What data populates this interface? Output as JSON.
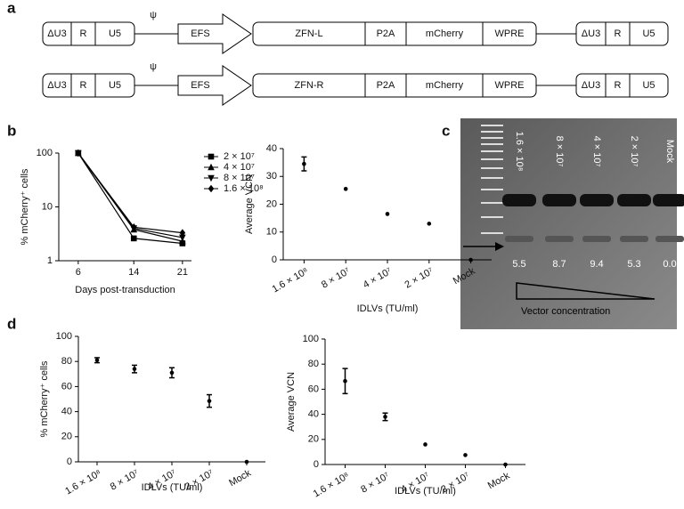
{
  "panels": [
    "a",
    "b",
    "c",
    "d"
  ],
  "diagram": {
    "rows": [
      [
        "ΔU3",
        "R",
        "U5",
        "ψ",
        "EFS",
        "ZFN-L",
        "P2A",
        "mCherry",
        "WPRE",
        "ΔU3",
        "R",
        "U5"
      ],
      [
        "ΔU3",
        "R",
        "U5",
        "ψ",
        "EFS",
        "ZFN-R",
        "P2A",
        "mCherry",
        "WPRE",
        "ΔU3",
        "R",
        "U5"
      ]
    ]
  },
  "gel": {
    "lanes": [
      "1.6 × 10⁸",
      "8 × 10⁷",
      "4 × 10⁷",
      "2 × 10⁷",
      "Mock"
    ],
    "values": [
      "5.5",
      "8.7",
      "9.4",
      "5.3",
      "0.0"
    ],
    "caption": "Vector concentration"
  },
  "chart_data": [
    {
      "type": "line",
      "x_label": "Days post-transduction",
      "y_label": "% mCherry⁺ cells",
      "log_y": true,
      "x": [
        6,
        14,
        21
      ],
      "xlim": [
        3.2,
        22.3
      ],
      "xticks": [
        6,
        14,
        21
      ],
      "ylim": [
        1,
        100
      ],
      "yticks": [
        1,
        10,
        100
      ],
      "series": [
        {
          "name": "2 × 10⁷",
          "color": "#000000",
          "marker": "square",
          "values": [
            100,
            2.6,
            2.1
          ]
        },
        {
          "name": "4 × 10⁷",
          "color": "#000000",
          "marker": "triangle",
          "values": [
            100,
            3.8,
            2.3
          ]
        },
        {
          "name": "8 × 10⁷",
          "color": "#000000",
          "marker": "triangle-down",
          "values": [
            100,
            4.0,
            2.7
          ]
        },
        {
          "name": "1.6 × 10⁸",
          "color": "#000000",
          "marker": "diamond",
          "values": [
            100,
            4.2,
            3.3
          ]
        }
      ]
    },
    {
      "type": "errorbar",
      "x_label": "IDLVs (TU/ml)",
      "y_label": "Average VCN",
      "color": "#000000",
      "categories": [
        "1.6 × 10⁸",
        "8 × 10⁷",
        "4 × 10⁷",
        "2 × 10⁷",
        "Mock"
      ],
      "values": [
        34.5,
        25.5,
        16.5,
        13,
        0
      ],
      "errors": [
        2.5,
        null,
        null,
        null,
        null
      ],
      "ylim": [
        0,
        40
      ],
      "yticks": [
        0,
        10,
        20,
        30,
        40
      ]
    },
    {
      "type": "errorbar",
      "x_label": "IDLVs (TU/ml)",
      "y_label": "% mCherry⁺ cells",
      "color": "#000000",
      "categories": [
        "1.6 × 10⁸",
        "8 × 10⁷",
        "4 × 10⁷",
        "2 × 10⁷",
        "Mock"
      ],
      "values": [
        81,
        74,
        71,
        48.5,
        0
      ],
      "errors": [
        2,
        3,
        4,
        5,
        null
      ],
      "ylim": [
        0,
        100
      ],
      "yticks": [
        0,
        20,
        40,
        60,
        80,
        100
      ]
    },
    {
      "type": "errorbar",
      "x_label": "IDLVs (TU/ml)",
      "y_label": "Average VCN",
      "color": "#000000",
      "categories": [
        "1.6 × 10⁸",
        "8 × 10⁷",
        "4 × 10⁷",
        "2 × 10⁷",
        "Mock"
      ],
      "values": [
        66.5,
        38,
        16,
        7.5,
        0
      ],
      "errors": [
        10,
        3,
        null,
        null,
        null
      ],
      "ylim": [
        0,
        100
      ],
      "yticks": [
        0,
        20,
        40,
        60,
        80,
        100
      ]
    }
  ]
}
